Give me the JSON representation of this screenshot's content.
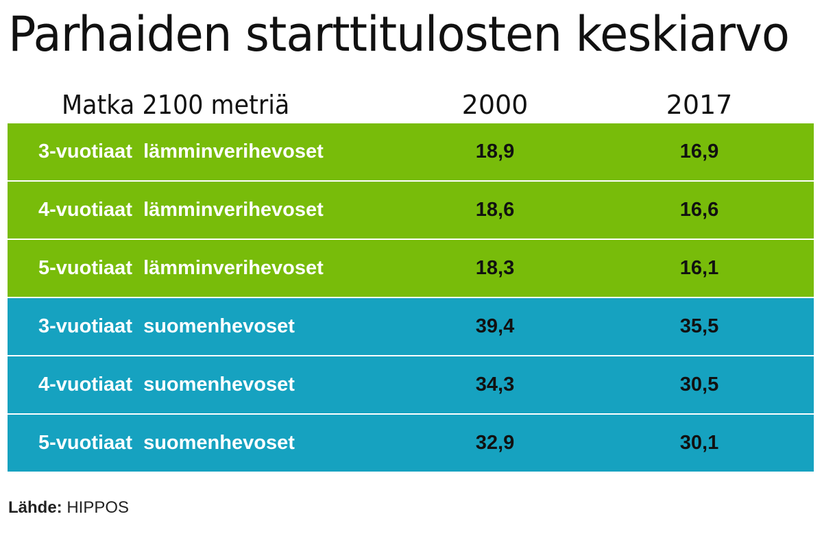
{
  "title": "Parhaiden starttitulosten keskiarvo",
  "chart_data": {
    "type": "table",
    "title": "Parhaiden starttitulosten keskiarvo",
    "row_header": "Matka 2100 metriä",
    "columns": [
      "2000",
      "2017"
    ],
    "rows": [
      {
        "label": "3-vuotiaat  lämminverihevoset",
        "values": [
          "18,9",
          "16,9"
        ],
        "color": "#78bc0a"
      },
      {
        "label": "4-vuotiaat  lämminverihevoset",
        "values": [
          "18,6",
          "16,6"
        ],
        "color": "#78bc0a"
      },
      {
        "label": "5-vuotiaat  lämminverihevoset",
        "values": [
          "18,3",
          "16,1"
        ],
        "color": "#78bc0a"
      },
      {
        "label": "3-vuotiaat  suomenhevoset",
        "values": [
          "39,4",
          "35,5"
        ],
        "color": "#16a2c0"
      },
      {
        "label": "4-vuotiaat  suomenhevoset",
        "values": [
          "34,3",
          "30,5"
        ],
        "color": "#16a2c0"
      },
      {
        "label": "5-vuotiaat  suomenhevoset",
        "values": [
          "32,9",
          "30,1"
        ],
        "color": "#16a2c0"
      }
    ]
  },
  "source": {
    "label": "Lähde:",
    "value": "HIPPOS"
  }
}
